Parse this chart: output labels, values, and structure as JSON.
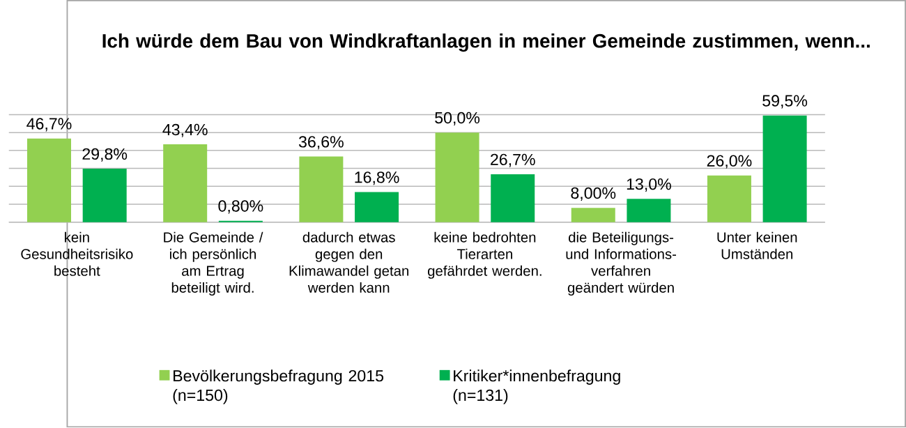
{
  "chart_data": {
    "type": "bar",
    "title": "Ich würde dem Bau von Windkraftanlagen in meiner Gemeinde zustimmen, wenn...",
    "categories": [
      "kein Gesundheitsrisiko besteht",
      "Die Gemeinde / ich persönlich am Ertrag beteiligt wird.",
      "dadurch etwas gegen den Klimawandel getan werden kann",
      "keine bedrohten Tierarten gefährdet werden.",
      "die Beteiligungs- und Informations-verfahren geändert würden",
      "Unter keinen Umständen"
    ],
    "series": [
      {
        "name": "Bevölkerungsbefragung 2015 (n=150)",
        "color": "#92d050",
        "values": [
          46.7,
          43.4,
          36.6,
          50.0,
          8.0,
          26.0
        ],
        "value_labels": [
          "46,7%",
          "43,4%",
          "36,6%",
          "50,0%",
          "8,00%",
          "26,0%"
        ]
      },
      {
        "name": "Kritiker*innenbefragung (n=131)",
        "color": "#00b050",
        "values": [
          29.8,
          0.8,
          16.8,
          26.7,
          13.0,
          59.5
        ],
        "value_labels": [
          "29,8%",
          "0,80%",
          "16,8%",
          "26,7%",
          "13,0%",
          "59,5%"
        ]
      }
    ],
    "yticks": [
      {
        "value": 0,
        "label": null
      },
      {
        "value": 10,
        "label": null
      },
      {
        "value": 20,
        "label": null
      },
      {
        "value": 30,
        "label": null
      },
      {
        "value": 40,
        "label": null
      },
      {
        "value": 50,
        "label": null
      },
      {
        "value": 60,
        "label": null
      }
    ],
    "grid": "y",
    "legend": "bottom",
    "tick_labels": "x"
  }
}
